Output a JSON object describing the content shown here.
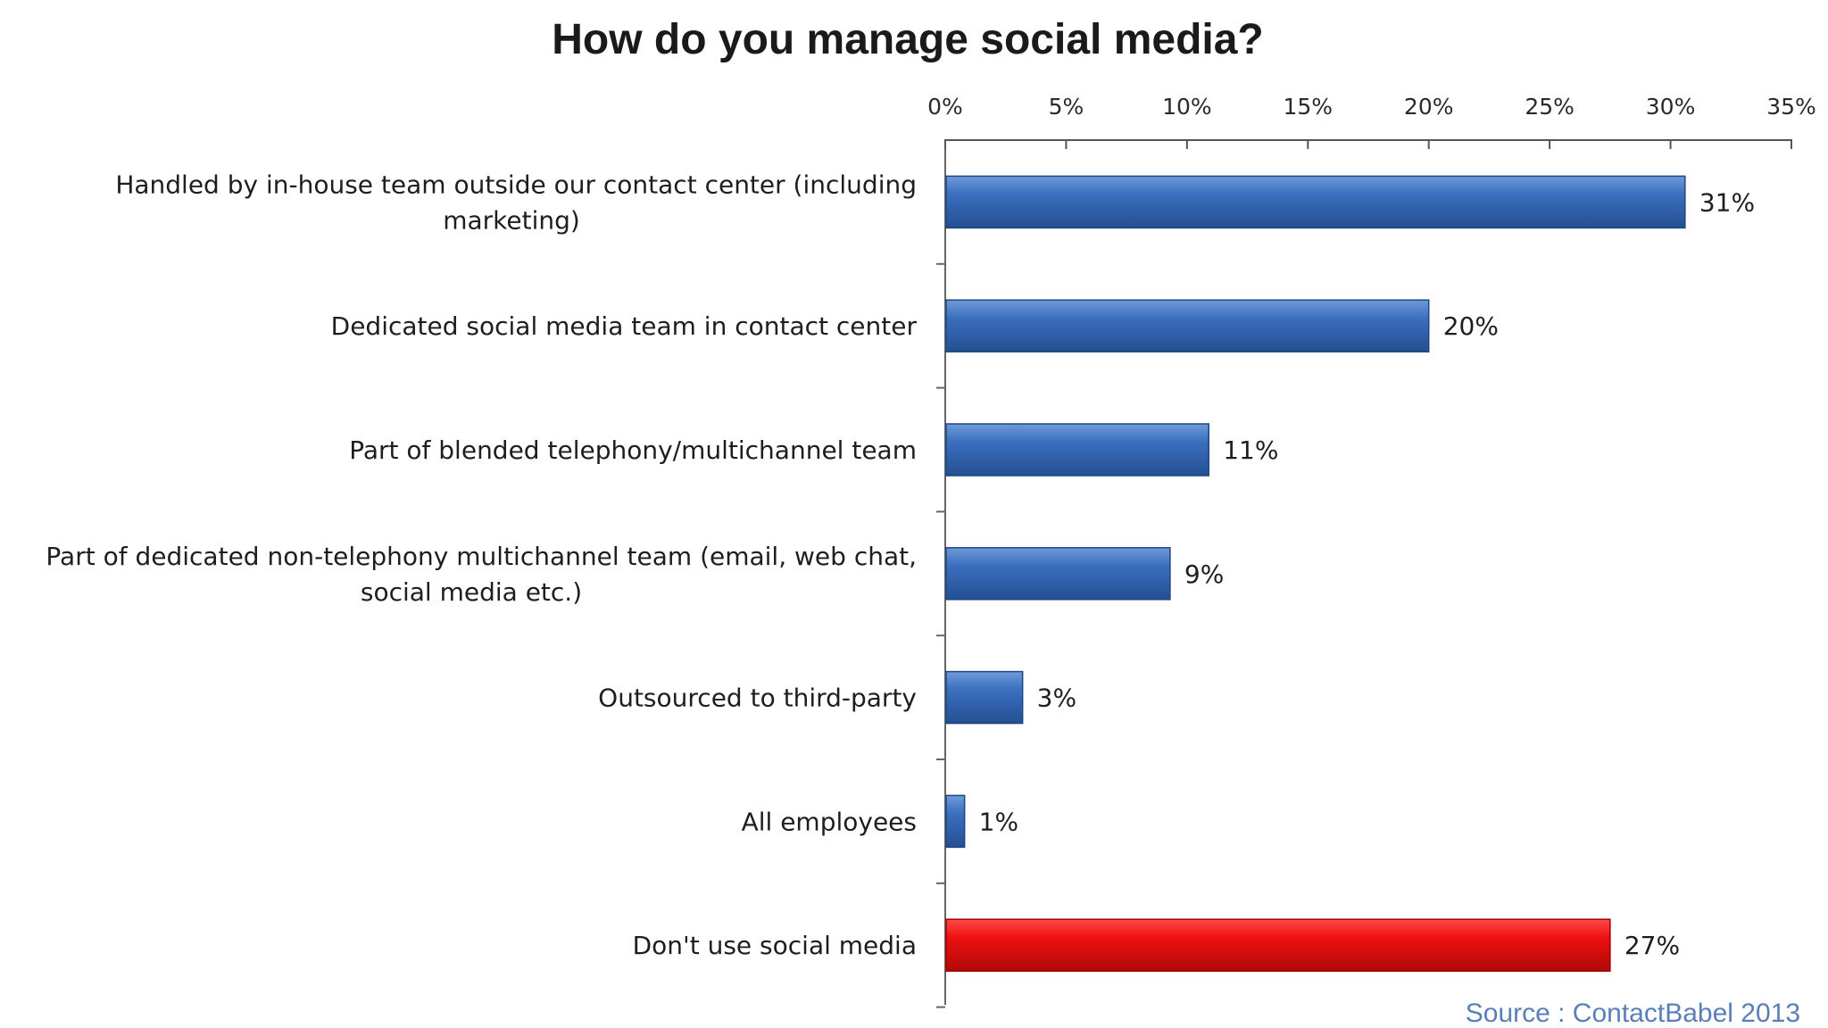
{
  "chart_data": {
    "type": "bar",
    "orientation": "horizontal",
    "title": "How do you manage social media?",
    "categories": [
      [
        "Handled by in-house team outside our contact center (including",
        "marketing)"
      ],
      [
        "Dedicated social media team in contact center"
      ],
      [
        "Part of blended telephony/multichannel team"
      ],
      [
        "Part of dedicated non-telephony multichannel team (email, web chat,",
        "social media etc.)"
      ],
      [
        "Outsourced to third-party"
      ],
      [
        "All employees"
      ],
      [
        "Don't use social media"
      ]
    ],
    "values": [
      30.6,
      20,
      10.9,
      9.3,
      3.2,
      0.8,
      27.5
    ],
    "value_labels": [
      "31%",
      "20%",
      "11%",
      "9%",
      "3%",
      "1%",
      "27%"
    ],
    "bar_colors": [
      "#3a6fbf",
      "#3a6fbf",
      "#3a6fbf",
      "#3a6fbf",
      "#3a6fbf",
      "#3a6fbf",
      "#ee1111"
    ],
    "xlim": [
      0,
      35
    ],
    "xticks": [
      0,
      5,
      10,
      15,
      20,
      25,
      30,
      35
    ],
    "xtick_labels": [
      "0%",
      "5%",
      "10%",
      "15%",
      "20%",
      "25%",
      "30%",
      "35%"
    ],
    "xaxis_position": "top",
    "grid": false,
    "legend": "none"
  },
  "source": "Source :  ContactBabel 2013",
  "colors": {
    "bar": "#3a6fbf",
    "highlight_bar": "#ee1111",
    "axis": "#555555",
    "source": "#5a7fb8"
  }
}
